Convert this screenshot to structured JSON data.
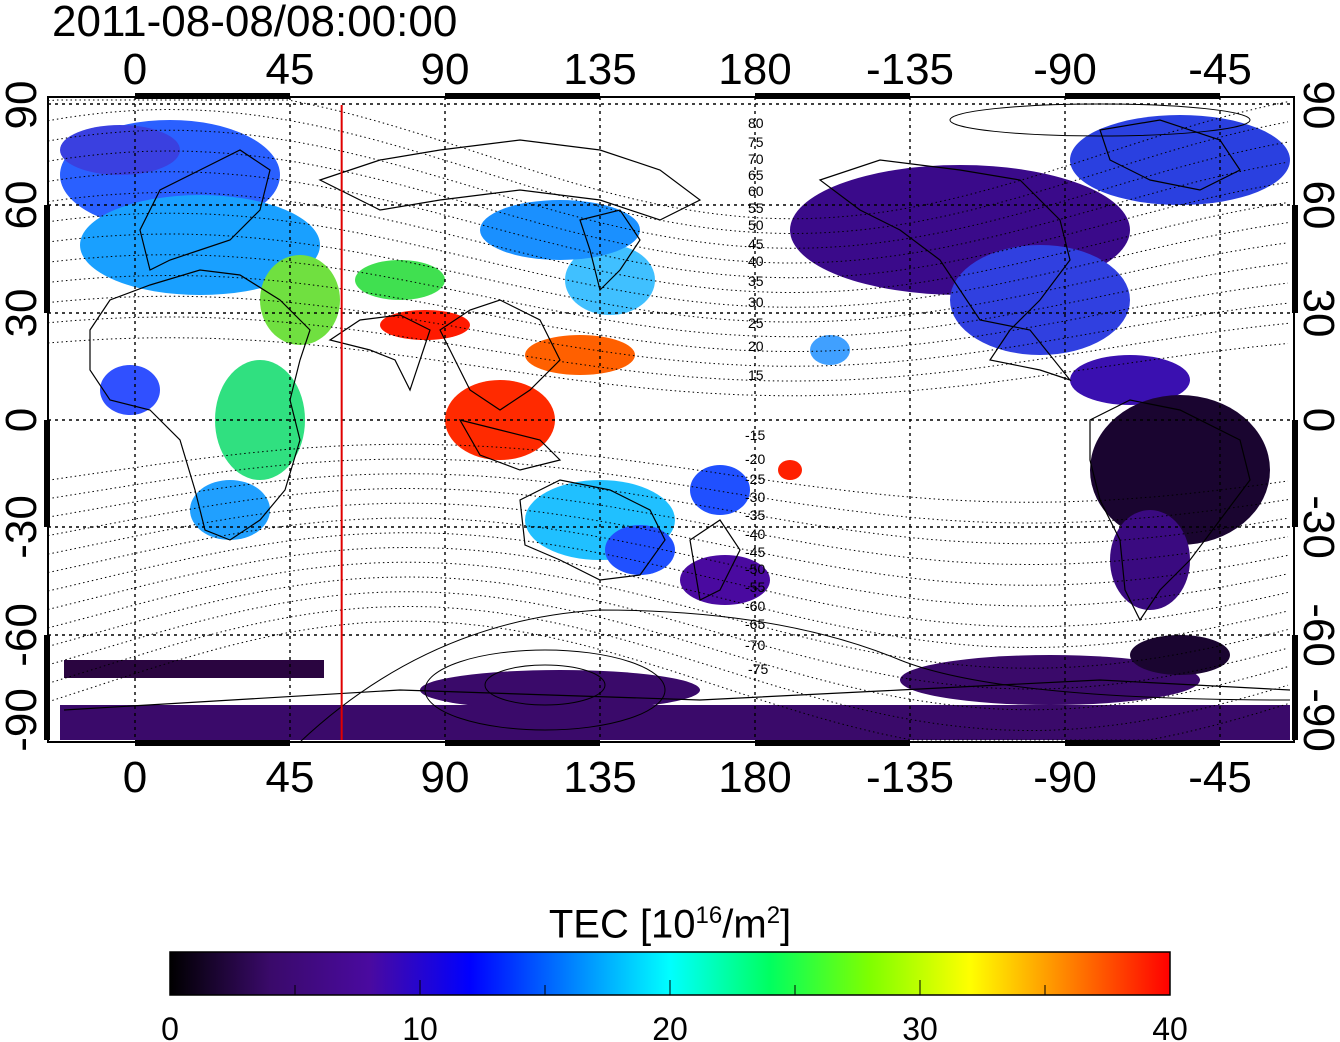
{
  "title": "2011-08-08/08:00:00",
  "axes": {
    "lon_ticks": [
      "0",
      "45",
      "90",
      "135",
      "180",
      "-135",
      "-90",
      "-45"
    ],
    "lat_ticks": [
      "90",
      "60",
      "30",
      "0",
      "-30",
      "-60",
      "-90"
    ]
  },
  "contour_labels": {
    "north": [
      "80",
      "75",
      "70",
      "65",
      "60",
      "55",
      "50",
      "45",
      "40",
      "35",
      "30",
      "25",
      "20",
      "15"
    ],
    "south": [
      "-15",
      "-20",
      "-25",
      "-30",
      "-35",
      "-40",
      "-45",
      "-50",
      "-55",
      "-60",
      "-65",
      "-70",
      "-75"
    ]
  },
  "colorbar": {
    "title_prefix": "TEC  [10",
    "title_sup1": "16",
    "title_mid": "/m",
    "title_sup2": "2",
    "title_suffix": "]",
    "ticks": [
      "0",
      "10",
      "20",
      "30",
      "40"
    ],
    "min": 0,
    "max": 40,
    "colors": [
      "#000000",
      "#3a0a6a",
      "#4a0aa0",
      "#0000ff",
      "#0080ff",
      "#00ffff",
      "#00ff60",
      "#7fff00",
      "#ffff00",
      "#ff8000",
      "#ff0000"
    ]
  },
  "terminator_longitude": 60
}
